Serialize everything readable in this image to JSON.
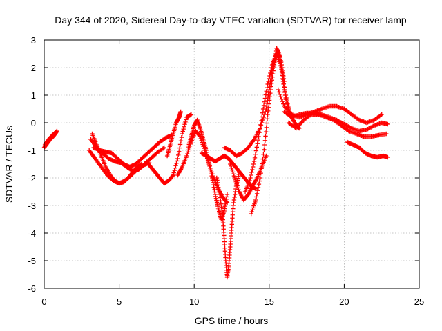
{
  "chart_data": {
    "type": "scatter",
    "title": "Day 344 of 2020, Sidereal Day-to-day VTEC variation (SDTVAR) for receiver lamp",
    "xlabel": "GPS time / hours",
    "ylabel": "SDTVAR / TECUs",
    "xlim": [
      0,
      25
    ],
    "ylim": [
      -6,
      3
    ],
    "x_ticks": [
      0,
      5,
      10,
      15,
      20,
      25
    ],
    "y_ticks": [
      -6,
      -5,
      -4,
      -3,
      -2,
      -1,
      0,
      1,
      2,
      3
    ],
    "x_tick_labels": [
      "0",
      "5",
      "10",
      "15",
      "20",
      "25"
    ],
    "y_tick_labels": [
      "-6",
      "-5",
      "-4",
      "-3",
      "-2",
      "-1",
      "0",
      "1",
      "2",
      "3"
    ],
    "grid": true,
    "marker": "plus",
    "color": "#ff0000",
    "series": [
      {
        "x": [
          0.0,
          0.2,
          0.4,
          0.6,
          0.8
        ],
        "y": [
          -0.9,
          -0.75,
          -0.6,
          -0.5,
          -0.35
        ]
      },
      {
        "x": [
          0.05,
          0.3,
          0.55,
          0.85
        ],
        "y": [
          -0.8,
          -0.6,
          -0.45,
          -0.3
        ]
      },
      {
        "x": [
          3.2,
          3.5,
          3.8,
          4.1,
          4.4,
          4.7,
          5.0,
          5.3,
          5.6,
          5.9,
          6.2,
          6.5
        ],
        "y": [
          -0.4,
          -0.8,
          -1.2,
          -1.6,
          -1.9,
          -2.1,
          -2.2,
          -2.15,
          -2.0,
          -1.8,
          -1.6,
          -1.5
        ]
      },
      {
        "x": [
          3.0,
          3.4,
          3.8,
          4.2,
          4.6,
          5.0,
          5.4,
          5.8,
          6.2,
          6.6,
          7.0
        ],
        "y": [
          -1.0,
          -1.3,
          -1.6,
          -1.9,
          -2.1,
          -2.2,
          -2.1,
          -1.9,
          -1.7,
          -1.55,
          -1.45
        ]
      },
      {
        "x": [
          3.1,
          3.5,
          3.9,
          4.3,
          4.7,
          5.1,
          5.5,
          5.9,
          6.3,
          6.7,
          7.1,
          7.5,
          8.0
        ],
        "y": [
          -0.6,
          -0.9,
          -1.1,
          -1.3,
          -1.4,
          -1.45,
          -1.6,
          -1.75,
          -1.7,
          -1.5,
          -1.3,
          -1.1,
          -0.9
        ]
      },
      {
        "x": [
          3.3,
          3.7,
          4.1,
          4.5,
          4.9,
          5.3,
          5.7,
          6.1,
          6.5,
          6.9,
          7.3,
          7.7,
          8.1,
          8.5
        ],
        "y": [
          -0.9,
          -1.0,
          -1.05,
          -1.1,
          -1.3,
          -1.5,
          -1.6,
          -1.5,
          -1.3,
          -1.1,
          -0.9,
          -0.7,
          -0.55,
          -0.45
        ]
      },
      {
        "x": [
          6.8,
          7.1,
          7.4,
          7.7,
          8.0,
          8.3,
          8.6,
          8.9,
          9.2,
          9.5,
          9.8
        ],
        "y": [
          -1.4,
          -1.6,
          -1.8,
          -2.0,
          -2.2,
          -2.1,
          -1.9,
          -1.3,
          -0.4,
          0.2,
          0.3
        ]
      },
      {
        "x": [
          8.2,
          8.4,
          8.6,
          8.8,
          9.0,
          9.1
        ],
        "y": [
          -1.2,
          -0.8,
          -0.4,
          0.0,
          0.2,
          0.4
        ]
      },
      {
        "x": [
          8.9,
          9.2,
          9.5,
          9.8,
          10.1,
          10.4,
          10.7,
          11.0,
          11.3,
          11.6,
          11.9,
          12.2
        ],
        "y": [
          -1.9,
          -1.6,
          -1.2,
          -0.7,
          -0.3,
          -0.5,
          -1.0,
          -1.5,
          -2.0,
          -2.4,
          -2.7,
          -2.9
        ]
      },
      {
        "x": [
          9.6,
          9.8,
          10.0,
          10.2,
          10.4,
          10.6,
          10.8,
          11.0,
          11.2,
          11.4,
          11.6,
          11.8,
          12.0,
          12.2
        ],
        "y": [
          -0.9,
          -0.5,
          -0.1,
          0.1,
          -0.2,
          -0.6,
          -1.0,
          -1.5,
          -2.0,
          -2.6,
          -3.1,
          -3.5,
          -3.2,
          -2.6
        ]
      },
      {
        "x": [
          11.5,
          11.7,
          11.9,
          12.0,
          12.1,
          12.2,
          12.3,
          12.4,
          12.5,
          12.6,
          12.8,
          13.0
        ],
        "y": [
          -2.0,
          -2.6,
          -3.4,
          -4.2,
          -5.0,
          -5.6,
          -5.2,
          -4.5,
          -3.8,
          -3.0,
          -2.3,
          -1.8
        ]
      },
      {
        "x": [
          10.5,
          10.8,
          11.1,
          11.4,
          11.7,
          12.0,
          12.3,
          12.6,
          12.9,
          13.2,
          13.5,
          13.8,
          14.1
        ],
        "y": [
          -1.1,
          -1.2,
          -1.3,
          -1.4,
          -1.3,
          -1.2,
          -1.3,
          -1.5,
          -1.7,
          -1.9,
          -2.1,
          -2.3,
          -2.4
        ]
      },
      {
        "x": [
          12.4,
          12.7,
          13.0,
          13.3,
          13.6,
          13.9,
          14.2,
          14.5,
          14.8
        ],
        "y": [
          -1.5,
          -2.0,
          -2.5,
          -2.8,
          -2.6,
          -2.3,
          -2.0,
          -1.6,
          -1.2
        ]
      },
      {
        "x": [
          12.0,
          12.4,
          12.8,
          13.2,
          13.6,
          14.0,
          14.4,
          14.8,
          15.0,
          15.2,
          15.4,
          15.6,
          15.8,
          16.0
        ],
        "y": [
          -0.9,
          -1.0,
          -1.2,
          -1.1,
          -0.9,
          -0.6,
          -0.2,
          0.5,
          1.2,
          1.9,
          2.4,
          2.6,
          2.2,
          1.5
        ]
      },
      {
        "x": [
          13.8,
          14.1,
          14.4,
          14.7,
          14.9,
          15.1,
          15.3,
          15.5,
          15.7,
          15.9,
          16.1,
          16.3
        ],
        "y": [
          -3.3,
          -2.8,
          -2.0,
          -0.8,
          0.3,
          1.2,
          2.0,
          2.7,
          2.4,
          1.6,
          0.9,
          0.5
        ]
      },
      {
        "x": [
          13.4,
          13.7,
          14.0,
          14.3,
          14.6,
          14.9,
          15.2,
          15.5,
          15.8,
          16.1,
          16.4,
          16.7,
          17.0
        ],
        "y": [
          -2.5,
          -2.1,
          -1.4,
          -0.5,
          0.5,
          1.4,
          2.1,
          2.5,
          2.0,
          1.0,
          0.3,
          0.0,
          -0.2
        ]
      },
      {
        "x": [
          15.6,
          16.0,
          16.5,
          17.0,
          17.5,
          18.0,
          18.5,
          19.0,
          19.5,
          20.0,
          20.5,
          21.0,
          21.5,
          22.0,
          22.5
        ],
        "y": [
          1.2,
          0.6,
          0.3,
          0.2,
          0.3,
          0.4,
          0.5,
          0.6,
          0.6,
          0.5,
          0.3,
          0.1,
          0.0,
          0.1,
          0.3
        ]
      },
      {
        "x": [
          16.0,
          16.5,
          17.0,
          17.5,
          18.0,
          18.5,
          19.0,
          19.5,
          20.0,
          20.5,
          21.0,
          21.5,
          22.0,
          22.5,
          22.9
        ],
        "y": [
          0.4,
          0.2,
          0.3,
          0.35,
          0.35,
          0.3,
          0.2,
          0.1,
          -0.05,
          -0.2,
          -0.3,
          -0.25,
          -0.1,
          0.0,
          -0.05
        ]
      },
      {
        "x": [
          16.3,
          16.8,
          17.3,
          17.8,
          18.3,
          18.8,
          19.3,
          19.8,
          20.3,
          20.8,
          21.3,
          21.8,
          22.3,
          22.8
        ],
        "y": [
          0.0,
          -0.2,
          0.1,
          0.3,
          0.3,
          0.2,
          0.1,
          -0.1,
          -0.3,
          -0.4,
          -0.5,
          -0.5,
          -0.45,
          -0.4
        ]
      },
      {
        "x": [
          20.2,
          20.6,
          21.0,
          21.4,
          21.8,
          22.2,
          22.6,
          22.9
        ],
        "y": [
          -0.7,
          -0.8,
          -0.9,
          -1.1,
          -1.2,
          -1.25,
          -1.2,
          -1.25
        ]
      }
    ]
  }
}
